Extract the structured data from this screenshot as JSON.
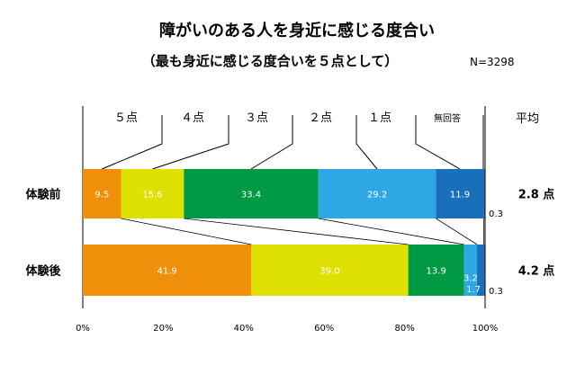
{
  "chart_data": {
    "type": "bar",
    "orientation": "horizontal",
    "stacked": true,
    "percent": true,
    "title": "障がいのある人を身近に感じる度合い",
    "subtitle": "（最も身近に感じる度合いを５点として）",
    "n_label": "N=3298",
    "categories": [
      "体験前",
      "体験後"
    ],
    "series": [
      {
        "name": "５点",
        "color": "#f0900a",
        "values": [
          9.5,
          41.9
        ]
      },
      {
        "name": "４点",
        "color": "#dde000",
        "values": [
          15.6,
          39.0
        ]
      },
      {
        "name": "３点",
        "color": "#009a44",
        "values": [
          33.4,
          13.9
        ]
      },
      {
        "name": "２点",
        "color": "#2ea8e4",
        "values": [
          29.2,
          3.2
        ]
      },
      {
        "name": "１点",
        "color": "#1a6fba",
        "values": [
          11.9,
          1.7
        ]
      },
      {
        "name": "無回答",
        "color": "#1b3a6e",
        "values": [
          0.3,
          0.3
        ]
      }
    ],
    "value_labels": [
      [
        "9.5",
        "15.6",
        "33.4",
        "29.2",
        "11.9",
        "0.3"
      ],
      [
        "41.9",
        "39.0",
        "13.9",
        "3.2",
        "1.7",
        "0.3"
      ]
    ],
    "x_ticks": [
      "0%",
      "20%",
      "40%",
      "60%",
      "80%",
      "100%"
    ],
    "xlim": [
      0,
      100
    ],
    "average_header": "平均",
    "averages": [
      "2.8 点",
      "4.2 点"
    ],
    "legend": "top, connected by leader lines",
    "grid": false
  }
}
